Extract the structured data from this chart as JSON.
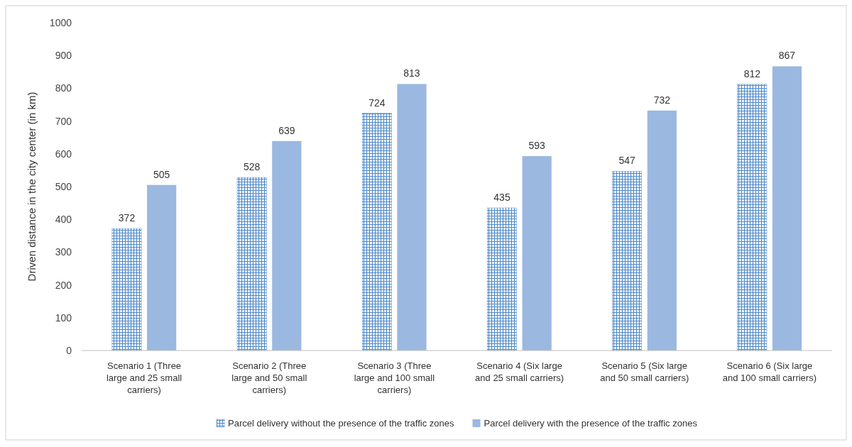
{
  "chart_data": {
    "type": "bar",
    "ylabel": "Driven distance in the city center (in km)",
    "categories": [
      "Scenario 1 (Three large and 25 small carriers)",
      "Scenario 2 (Three large and 50 small carriers)",
      "Scenario 3 (Three large and 100 small carriers)",
      "Scenario 4 (Six large and 25 small carriers)",
      "Scenario 5 (Six large and 50 small carriers)",
      "Scenario 6 (Six large and 100 small carriers)"
    ],
    "series": [
      {
        "name": "Parcel delivery without the presence of the traffic zones",
        "color": "#4a86c8",
        "values": [
          372,
          528,
          724,
          435,
          547,
          812
        ]
      },
      {
        "name": "Parcel delivery with the presence of the traffic zones",
        "color": "#9ab8e0",
        "values": [
          505,
          639,
          813,
          593,
          732,
          867
        ]
      }
    ],
    "ylim": [
      0,
      1000
    ],
    "yticks": [
      0,
      100,
      200,
      300,
      400,
      500,
      600,
      700,
      800,
      900,
      1000
    ],
    "grid": false,
    "legend": "bottom",
    "data_labels": true
  }
}
